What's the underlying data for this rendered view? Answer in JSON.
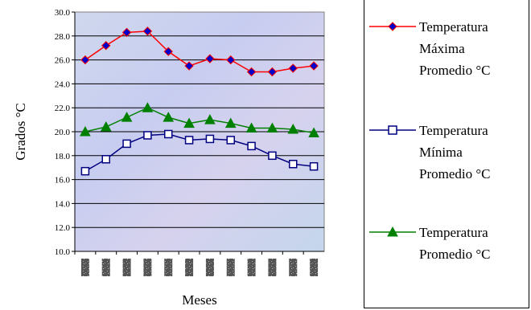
{
  "chart_data": {
    "type": "line",
    "title": "",
    "xlabel": "Meses",
    "ylabel": "Grados °C",
    "ylim": [
      10,
      30
    ],
    "yticks": [
      "10.0",
      "12.0",
      "14.0",
      "16.0",
      "18.0",
      "20.0",
      "22.0",
      "24.0",
      "26.0",
      "28.0",
      "30.0"
    ],
    "categories": [
      "",
      "",
      "",
      "",
      "",
      "",
      "",
      "",
      "",
      "",
      "",
      ""
    ],
    "grid": true,
    "legend_position": "right",
    "series": [
      {
        "name": "Temperatura Máxima Promedio °C",
        "color": "#ff0000",
        "marker_fill": "#0000cc",
        "marker": "diamond",
        "values": [
          26.0,
          27.2,
          28.3,
          28.4,
          26.7,
          25.5,
          26.1,
          26.0,
          25.0,
          25.0,
          25.3,
          25.5
        ]
      },
      {
        "name": "Temperatura Mínima Promedio °C",
        "color": "#000080",
        "marker_fill": "#ffffff",
        "marker": "square",
        "values": [
          16.7,
          17.7,
          19.0,
          19.7,
          19.8,
          19.3,
          19.4,
          19.3,
          18.8,
          18.0,
          17.3,
          17.1
        ]
      },
      {
        "name": "Temperatura Promedio °C",
        "color": "#008000",
        "marker_fill": "#008000",
        "marker": "triangle",
        "values": [
          20.0,
          20.4,
          21.2,
          22.0,
          21.2,
          20.7,
          21.0,
          20.7,
          20.3,
          20.3,
          20.2,
          19.9
        ]
      }
    ]
  }
}
